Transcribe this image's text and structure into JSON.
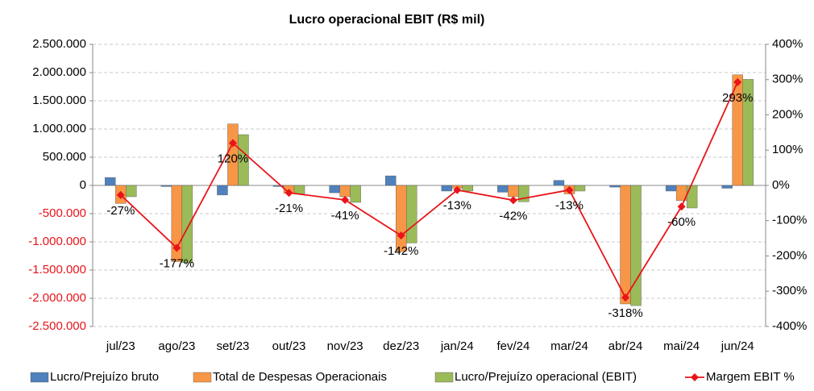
{
  "chart_data": {
    "type": "bar",
    "title": "Lucro operacional EBIT (R$ mil)",
    "categories": [
      "jul/23",
      "ago/23",
      "set/23",
      "out/23",
      "nov/23",
      "dez/23",
      "jan/24",
      "fev/24",
      "mar/24",
      "abr/24",
      "mai/24",
      "jun/24"
    ],
    "series": [
      {
        "name": "Lucro/Prejuízo bruto",
        "color": "#4f81bd",
        "values": [
          140000,
          -20000,
          -170000,
          -20000,
          -130000,
          170000,
          -100000,
          -120000,
          90000,
          -30000,
          -100000,
          -50000
        ]
      },
      {
        "name": "Total de Despesas Operacionais",
        "color": "#f79646",
        "values": [
          -320000,
          -1350000,
          1090000,
          -140000,
          -200000,
          -1170000,
          -50000,
          -200000,
          -150000,
          -2100000,
          -270000,
          1960000
        ]
      },
      {
        "name": "Lucro/Prejuízo operacional (EBIT)",
        "color": "#9bbb59",
        "values": [
          -200000,
          -1370000,
          900000,
          -150000,
          -300000,
          -1020000,
          -100000,
          -290000,
          -100000,
          -2130000,
          -400000,
          1880000
        ]
      },
      {
        "name": "Margem EBIT %",
        "color": "#e8141a",
        "type": "line",
        "axis": "y2",
        "values": [
          -27,
          -177,
          120,
          -21,
          -41,
          -142,
          -13,
          -42,
          -13,
          -318,
          -60,
          293
        ],
        "value_labels": [
          "-27%",
          "-177%",
          "120%",
          "-21%",
          "-41%",
          "-142%",
          "-13%",
          "-42%",
          "-13%",
          "-318%",
          "-60%",
          "293%"
        ]
      }
    ],
    "ylim": [
      -2500000,
      2500000
    ],
    "yticks": [
      {
        "value": 2500000,
        "label": "2.500.000"
      },
      {
        "value": 2000000,
        "label": "2.000.000"
      },
      {
        "value": 1500000,
        "label": "1.500.000"
      },
      {
        "value": 1000000,
        "label": "1.000.000"
      },
      {
        "value": 500000,
        "label": "500.000"
      },
      0,
      {
        "value": -500000,
        "label": "-500.000"
      },
      {
        "value": -1000000,
        "label": "-1.000.000"
      },
      {
        "value": -1500000,
        "label": "-1.500.000"
      },
      {
        "value": -2000000,
        "label": "-2.000.000"
      },
      {
        "value": -2500000,
        "label": "-2.500.000"
      }
    ],
    "y2lim": [
      -400,
      400
    ],
    "y2ticks": [
      {
        "value": 400,
        "label": "400%"
      },
      {
        "value": 300,
        "label": "300%"
      },
      {
        "value": 200,
        "label": "200%"
      },
      {
        "value": 100,
        "label": "100%"
      },
      {
        "value": 0,
        "label": "0%"
      },
      {
        "value": -100,
        "label": "-100%"
      },
      {
        "value": -200,
        "label": "-200%"
      },
      {
        "value": -300,
        "label": "-300%"
      },
      {
        "value": -400,
        "label": "-400%"
      }
    ],
    "grid": true,
    "legend": "bottom"
  }
}
